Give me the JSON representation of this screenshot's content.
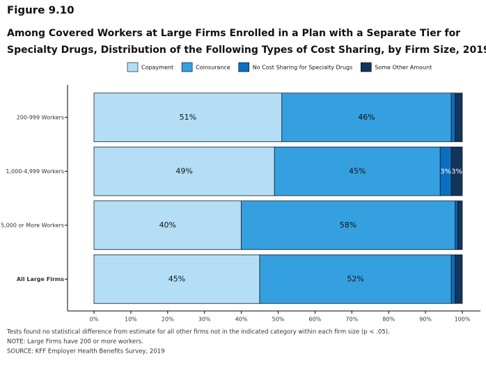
{
  "chart_data": {
    "type": "stacked-barh",
    "figure_label": "Figure 9.10",
    "title": [
      "Among Covered Workers at Large Firms Enrolled in a Plan with a Separate Tier for",
      "Specialty Drugs, Distribution of the Following Types of Cost Sharing, by Firm Size, 2019"
    ],
    "categories": [
      "200-999 Workers",
      "1,000-4,999 Workers",
      "5,000 or More Workers",
      "All Large Firms"
    ],
    "series": [
      {
        "name": "Copayment",
        "color": "#b3def5",
        "values": [
          51,
          49,
          40,
          45
        ],
        "value_labels": [
          "51%",
          "49%",
          "40%",
          "45%"
        ]
      },
      {
        "name": "Coinsurance",
        "color": "#35a0e0",
        "values": [
          46,
          45,
          58,
          52
        ],
        "value_labels": [
          "46%",
          "45%",
          "58%",
          "52%"
        ]
      },
      {
        "name": "No Cost Sharing for Specialty Drugs",
        "color": "#0a6fc2",
        "values": [
          1,
          3,
          0.7,
          1
        ],
        "value_labels": [
          null,
          "3%",
          null,
          null
        ]
      },
      {
        "name": "Some Other Amount",
        "color": "#13355c",
        "values": [
          2,
          3,
          1.3,
          2
        ],
        "value_labels": [
          null,
          "3%",
          null,
          null
        ]
      }
    ],
    "xlim": [
      0,
      100
    ],
    "xticks": [
      {
        "value": 0,
        "label": "0%"
      },
      {
        "value": 10,
        "label": "10%"
      },
      {
        "value": 20,
        "label": "20%"
      },
      {
        "value": 30,
        "label": "30%"
      },
      {
        "value": 40,
        "label": "40%"
      },
      {
        "value": 50,
        "label": "50%"
      },
      {
        "value": 60,
        "label": "60%"
      },
      {
        "value": 70,
        "label": "70%"
      },
      {
        "value": 80,
        "label": "80%"
      },
      {
        "value": 90,
        "label": "90%"
      },
      {
        "value": 100,
        "label": "100%"
      }
    ],
    "notes": [
      "Tests found no statistical difference from estimate for all other firms not in the indicated category within each firm size (p < .05).",
      "NOTE: Large Firms have 200 or more workers.",
      "SOURCE: KFF Employer Health Benefits Survey, 2019"
    ]
  }
}
